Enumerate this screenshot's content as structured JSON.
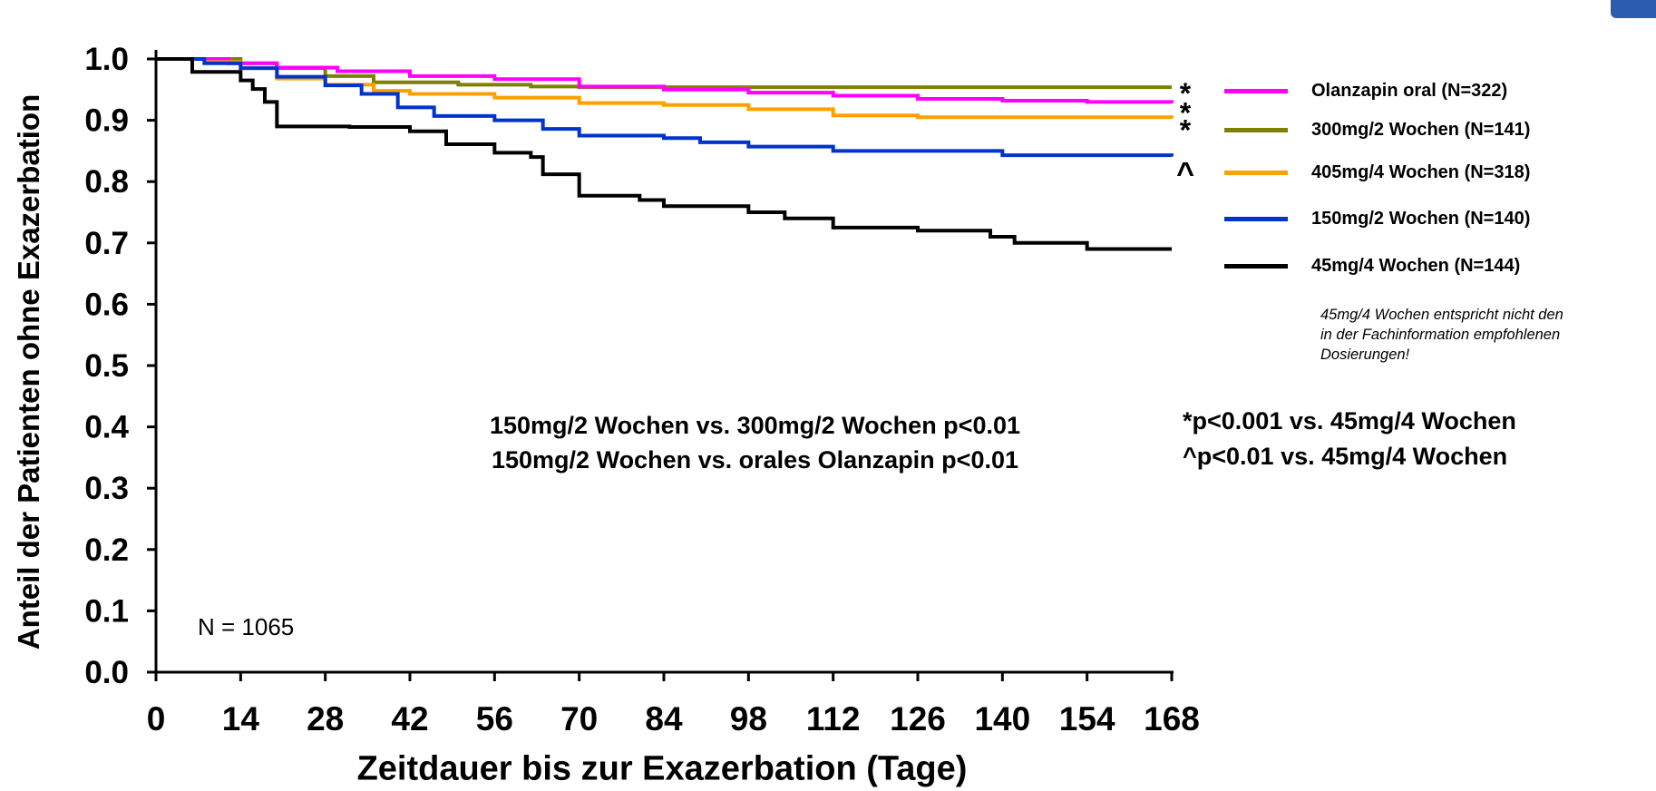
{
  "chart_data": {
    "type": "line",
    "step": true,
    "xlabel": "Zeitdauer bis zur Exazerbation (Tage)",
    "ylabel": "Anteil der Patienten ohne Exazerbation",
    "xlim": [
      0,
      168
    ],
    "ylim": [
      0.0,
      1.0
    ],
    "xticks": [
      "0",
      "14",
      "28",
      "42",
      "56",
      "70",
      "84",
      "98",
      "112",
      "126",
      "140",
      "154",
      "168"
    ],
    "yticks": [
      "0.0",
      "0.1",
      "0.2",
      "0.3",
      "0.4",
      "0.5",
      "0.6",
      "0.7",
      "0.8",
      "0.9",
      "1.0"
    ],
    "grid": false,
    "legend_position": "right",
    "series": [
      {
        "name": "Olanzapin oral (N=322)",
        "color": "#ff00ff",
        "marker": "*",
        "points": [
          [
            0,
            1.0
          ],
          [
            8,
            1.0
          ],
          [
            12,
            0.993
          ],
          [
            20,
            0.986
          ],
          [
            30,
            0.98
          ],
          [
            42,
            0.972
          ],
          [
            56,
            0.967
          ],
          [
            70,
            0.955
          ],
          [
            84,
            0.95
          ],
          [
            98,
            0.945
          ],
          [
            112,
            0.94
          ],
          [
            126,
            0.935
          ],
          [
            140,
            0.932
          ],
          [
            154,
            0.93
          ],
          [
            168,
            0.928
          ]
        ]
      },
      {
        "name": "300mg/2 Wochen (N=141)",
        "color": "#808000",
        "marker": "*",
        "points": [
          [
            0,
            1.0
          ],
          [
            10,
            1.0
          ],
          [
            14,
            0.993
          ],
          [
            20,
            0.985
          ],
          [
            28,
            0.972
          ],
          [
            36,
            0.962
          ],
          [
            50,
            0.958
          ],
          [
            62,
            0.955
          ],
          [
            70,
            0.954
          ],
          [
            168,
            0.954
          ]
        ]
      },
      {
        "name": "405mg/4 Wochen (N=318)",
        "color": "#ffa000",
        "marker": "*",
        "points": [
          [
            0,
            1.0
          ],
          [
            8,
            0.995
          ],
          [
            14,
            0.985
          ],
          [
            20,
            0.968
          ],
          [
            28,
            0.958
          ],
          [
            36,
            0.948
          ],
          [
            42,
            0.943
          ],
          [
            56,
            0.937
          ],
          [
            70,
            0.928
          ],
          [
            84,
            0.925
          ],
          [
            98,
            0.918
          ],
          [
            112,
            0.908
          ],
          [
            126,
            0.905
          ],
          [
            168,
            0.903
          ]
        ]
      },
      {
        "name": "150mg/2 Wochen (N=140)",
        "color": "#0033cc",
        "marker": "^",
        "points": [
          [
            0,
            1.0
          ],
          [
            8,
            0.993
          ],
          [
            14,
            0.985
          ],
          [
            20,
            0.971
          ],
          [
            28,
            0.957
          ],
          [
            34,
            0.943
          ],
          [
            40,
            0.921
          ],
          [
            46,
            0.907
          ],
          [
            56,
            0.9
          ],
          [
            64,
            0.886
          ],
          [
            70,
            0.875
          ],
          [
            84,
            0.871
          ],
          [
            90,
            0.864
          ],
          [
            98,
            0.857
          ],
          [
            112,
            0.85
          ],
          [
            126,
            0.85
          ],
          [
            140,
            0.843
          ],
          [
            168,
            0.841
          ]
        ]
      },
      {
        "name": "45mg/4 Wochen (N=144)",
        "color": "#000000",
        "marker": "",
        "points": [
          [
            0,
            1.0
          ],
          [
            6,
            0.979
          ],
          [
            14,
            0.965
          ],
          [
            16,
            0.951
          ],
          [
            18,
            0.93
          ],
          [
            20,
            0.89
          ],
          [
            32,
            0.889
          ],
          [
            42,
            0.882
          ],
          [
            48,
            0.861
          ],
          [
            56,
            0.847
          ],
          [
            62,
            0.84
          ],
          [
            64,
            0.812
          ],
          [
            70,
            0.777
          ],
          [
            80,
            0.77
          ],
          [
            84,
            0.76
          ],
          [
            98,
            0.75
          ],
          [
            104,
            0.74
          ],
          [
            112,
            0.725
          ],
          [
            126,
            0.72
          ],
          [
            138,
            0.71
          ],
          [
            142,
            0.7
          ],
          [
            154,
            0.69
          ],
          [
            168,
            0.69
          ]
        ]
      }
    ],
    "annotations": [
      "150mg/2 Wochen vs. 300mg/2 Wochen p<0.01",
      "150mg/2 Wochen vs. orales Olanzapin p<0.01",
      "*p<0.001 vs. 45mg/4 Wochen",
      "^p<0.01 vs. 45mg/4 Wochen",
      "N = 1065"
    ],
    "note": "45mg/4 Wochen entspricht  nicht den\n in der Fachinformation empfohlenen\n Dosierungen!"
  }
}
